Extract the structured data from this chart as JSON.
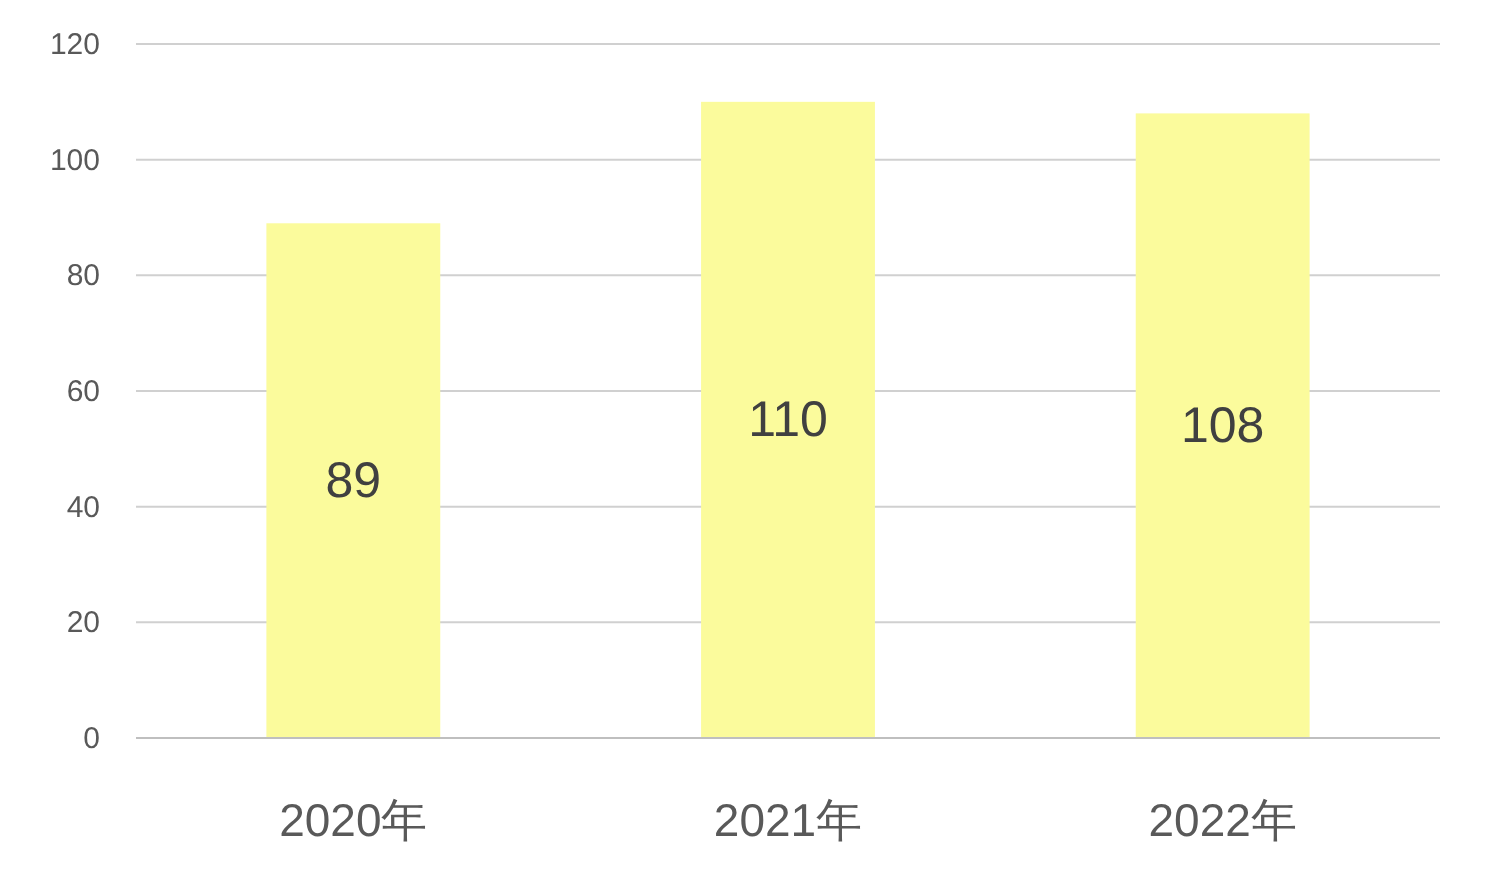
{
  "chart_data": {
    "type": "bar",
    "categories": [
      "2020年",
      "2021年",
      "2022年"
    ],
    "values": [
      89,
      110,
      108
    ],
    "color": "#fbfb9c",
    "ylim": [
      0,
      120
    ],
    "yticks": [
      0,
      20,
      40,
      60,
      80,
      100,
      120
    ],
    "grid": "y",
    "data_labels": true
  }
}
